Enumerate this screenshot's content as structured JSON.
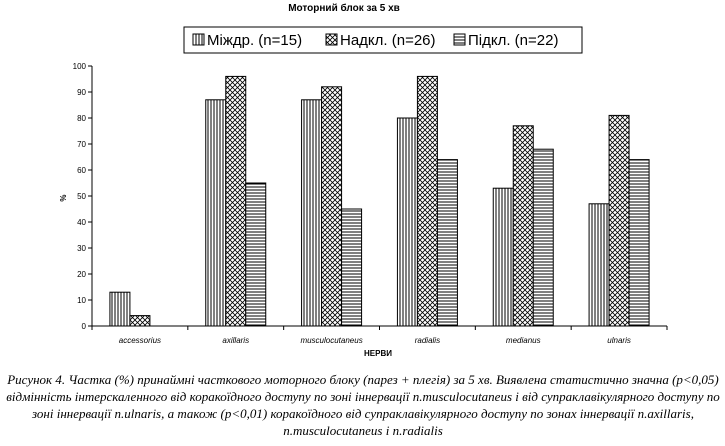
{
  "chart_data": {
    "type": "bar",
    "title": "Моторний блок за 5 хв",
    "xlabel": "НЕРВИ",
    "ylabel": "%",
    "ylim": [
      0,
      100
    ],
    "yticks": [
      0,
      10,
      20,
      30,
      40,
      50,
      60,
      70,
      80,
      90,
      100
    ],
    "grid": false,
    "legend": "top",
    "categories": [
      "accessorius",
      "axillaris",
      "musculocutaneus",
      "radialis",
      "medianus",
      "ulnaris"
    ],
    "series": [
      {
        "name": "Міждр. (n=15)",
        "pattern": "vertical-lines",
        "values": [
          13,
          87,
          87,
          80,
          53,
          47
        ]
      },
      {
        "name": "Надкл. (n=26)",
        "pattern": "crosshatch",
        "values": [
          4,
          96,
          92,
          96,
          77,
          81
        ]
      },
      {
        "name": "Підкл. (n=22)",
        "pattern": "horizontal-lines",
        "values": [
          0,
          55,
          45,
          64,
          68,
          64
        ]
      }
    ]
  },
  "caption": "Рисунок 4. Частка (%) принаймні часткового моторного блоку (парез + плегія) за 5 хв. Виявлена статистично значна (p<0,05) відмінність інтерскаленного від коракоїдного доступу по зоні іннервації n.musculocutaneus і від супраклавікулярного доступу по зоні іннервації n.ulnaris, а також (p<0,01) коракоїдного від супраклавікулярного доступу по зонах іннервації n.axillaris, n.musculocutaneus і n.radialis"
}
